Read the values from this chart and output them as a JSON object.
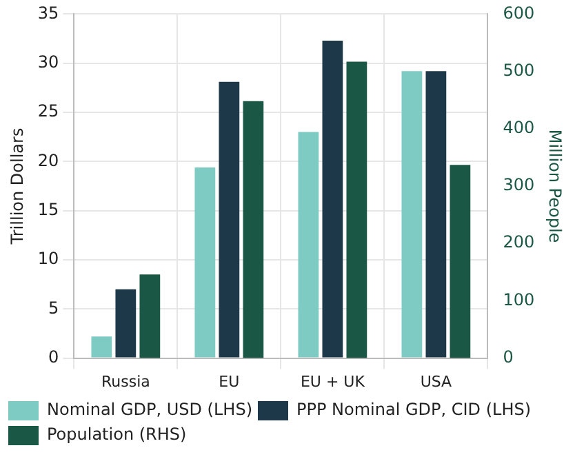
{
  "chart_data": {
    "type": "bar",
    "categories": [
      "Russia",
      "EU",
      "EU + UK",
      "USA"
    ],
    "series": [
      {
        "name": "Nominal GDP, USD (LHS)",
        "color": "#7ecbc3",
        "values": [
          2.2,
          19.4,
          23.0,
          29.2
        ]
      },
      {
        "name": "PPP Nominal GDP, CID (LHS)",
        "color": "#1c3849",
        "values": [
          7.0,
          28.1,
          32.3,
          29.2
        ]
      },
      {
        "name": "Population (RHS)",
        "color": "#1b5745",
        "values": [
          146,
          448,
          517,
          337
        ],
        "axis": "y2"
      }
    ],
    "ylabel": "Trillion Dollars",
    "y2label": "Million People",
    "ylim": [
      0,
      35
    ],
    "yticks": [
      0,
      5,
      10,
      15,
      20,
      25,
      30,
      35
    ],
    "y2lim": [
      0,
      600
    ],
    "y2ticks": [
      0,
      100,
      200,
      300,
      400,
      500,
      600
    ],
    "grid": true,
    "legend": "bottom"
  }
}
